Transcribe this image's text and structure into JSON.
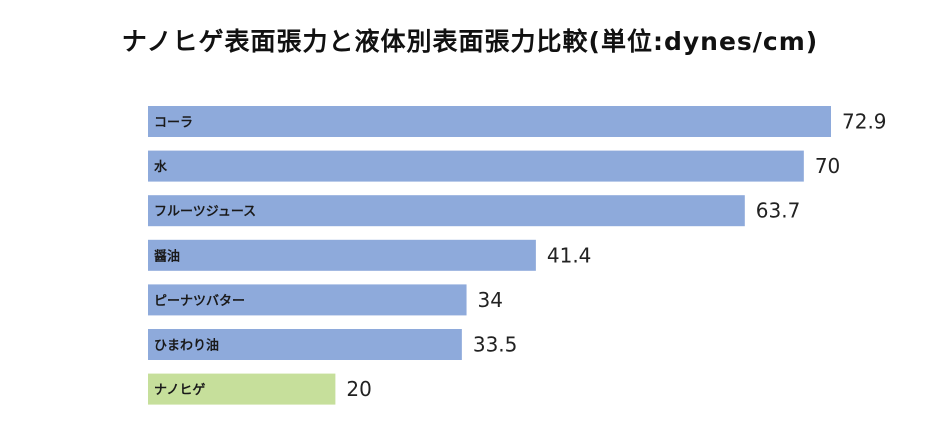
{
  "chart_data": {
    "type": "bar",
    "orientation": "horizontal",
    "title": "ナノヒゲ表面張力と液体別表面張力比較(単位:dynes/cm)",
    "categories": [
      "コーラ",
      "水",
      "フルーツジュース",
      "醤油",
      "ピーナツバター",
      "ひまわり油",
      "ナノヒゲ"
    ],
    "values": [
      72.9,
      70,
      63.7,
      41.4,
      34,
      33.5,
      20
    ],
    "value_labels": [
      "72.9",
      "70",
      "63.7",
      "41.4",
      "34",
      "33.5",
      "20"
    ],
    "bar_colors": [
      "#8eaadb",
      "#8eaadb",
      "#8eaadb",
      "#8eaadb",
      "#8eaadb",
      "#8eaadb",
      "#c6df9b"
    ],
    "xlim": [
      0,
      72.9
    ],
    "grid": false,
    "legend": "none"
  }
}
